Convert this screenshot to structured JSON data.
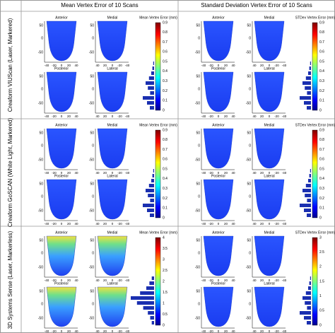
{
  "header": {
    "mean_title": "Mean Vertex Error of 10 Scans",
    "std_title": "Standard Deviation Vertex Error of 10 Scans"
  },
  "views": [
    "Anterior",
    "Medial",
    "Posterior",
    "Lateral"
  ],
  "y_ticks": [
    "50",
    "0",
    "-50"
  ],
  "x_ticks_front": [
    "-40",
    "-20",
    "0",
    "20",
    "40"
  ],
  "x_ticks_side": [
    "40",
    "20",
    "0",
    "-20",
    "-40"
  ],
  "rows": [
    {
      "label": "Creaform VIUScan (Laser, Markered)",
      "mean_colorbar": {
        "label": "Mean Vertex Error (mm)",
        "ticks": [
          "0",
          "0.1",
          "0.2",
          "0.3",
          "0.4",
          "0.5",
          "0.6",
          "0.7",
          "0.8",
          "0.9"
        ]
      },
      "std_colorbar": {
        "label": "STDev Vertex Error (mm)",
        "ticks": [
          "0",
          "0.1",
          "0.2",
          "0.3",
          "0.4",
          "0.5",
          "0.6",
          "0.7",
          "0.8",
          "0.9"
        ]
      }
    },
    {
      "label": "Creaform GoSCAN (White Light, Markered)",
      "mean_colorbar": {
        "label": "Mean Vertex Error (mm)",
        "ticks": [
          "0",
          "0.1",
          "0.2",
          "0.3",
          "0.4",
          "0.5",
          "0.6",
          "0.7",
          "0.8",
          "0.9"
        ]
      },
      "std_colorbar": {
        "label": "STDev Vertex Error (mm)",
        "ticks": [
          "0",
          "0.1",
          "0.2",
          "0.3",
          "0.4",
          "0.5",
          "0.6",
          "0.7",
          "0.8",
          "0.9"
        ]
      }
    },
    {
      "label": "3D Systems Sense (Laser, Markerless)",
      "mean_colorbar": {
        "label": "Mean Vertex Error (mm)",
        "ticks": [
          "0",
          "0.5",
          "1",
          "1.5",
          "2",
          "2.5",
          "3",
          "3.5",
          "4"
        ]
      },
      "std_colorbar": {
        "label": "STDev Vertex Error (mm)",
        "ticks": [
          "0",
          "0.5",
          "1",
          "1.5",
          "2",
          "2.5",
          "3"
        ]
      }
    }
  ]
}
